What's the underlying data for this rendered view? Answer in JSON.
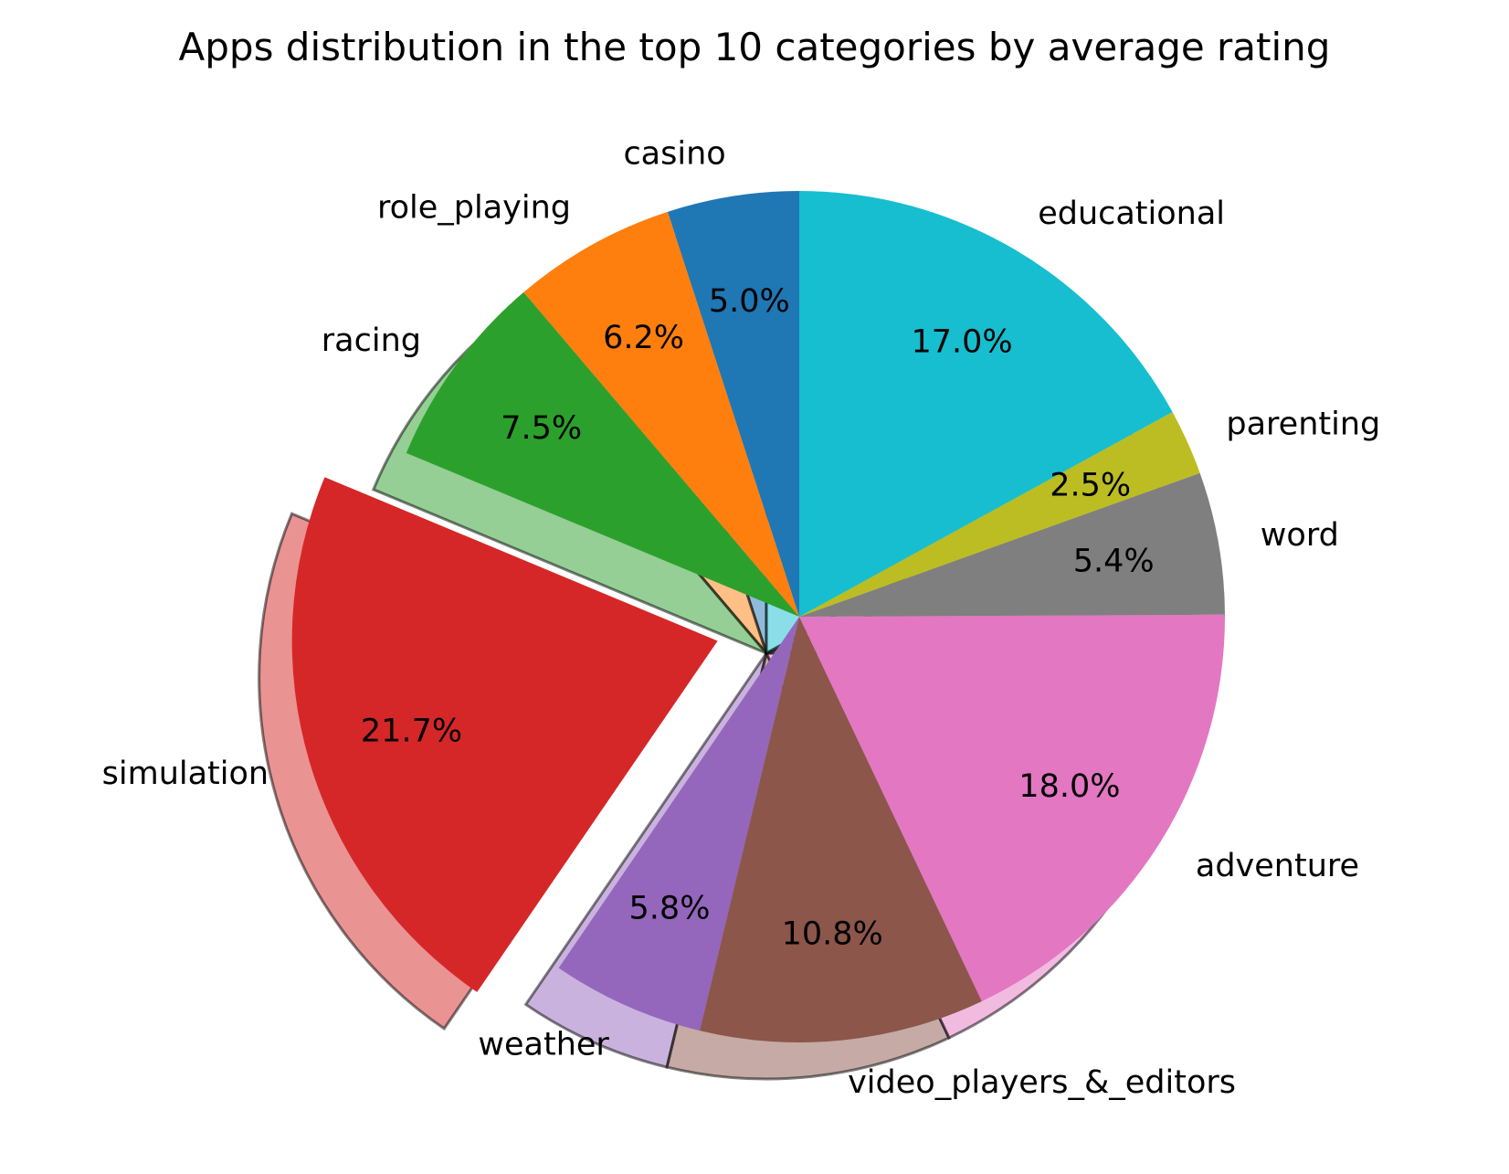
{
  "chart_data": {
    "type": "pie",
    "title": "Apps distribution in the top 10 categories by average rating",
    "start_angle_deg": 90,
    "direction": "counterclockwise",
    "shadow": true,
    "slices": [
      {
        "label": "casino",
        "value": 5.0,
        "pct_label": "5.0%",
        "color": "#1f77b4",
        "explode": 0
      },
      {
        "label": "role_playing",
        "value": 6.2,
        "pct_label": "6.2%",
        "color": "#ff7f0e",
        "explode": 0
      },
      {
        "label": "racing",
        "value": 7.5,
        "pct_label": "7.5%",
        "color": "#2ca02c",
        "explode": 0
      },
      {
        "label": "simulation",
        "value": 21.7,
        "pct_label": "21.7%",
        "color": "#d62728",
        "explode": 0.2
      },
      {
        "label": "weather",
        "value": 5.8,
        "pct_label": "5.8%",
        "color": "#9467bd",
        "explode": 0
      },
      {
        "label": "video_players_&_editors",
        "value": 10.8,
        "pct_label": "10.8%",
        "color": "#8c564b",
        "explode": 0
      },
      {
        "label": "adventure",
        "value": 18.0,
        "pct_label": "18.0%",
        "color": "#e377c2",
        "explode": 0
      },
      {
        "label": "word",
        "value": 5.4,
        "pct_label": "5.4%",
        "color": "#7f7f7f",
        "explode": 0
      },
      {
        "label": "parenting",
        "value": 2.5,
        "pct_label": "2.5%",
        "color": "#bcbd22",
        "explode": 0
      },
      {
        "label": "educational",
        "value": 17.0,
        "pct_label": "17.0%",
        "color": "#17becf",
        "explode": 0
      }
    ]
  }
}
